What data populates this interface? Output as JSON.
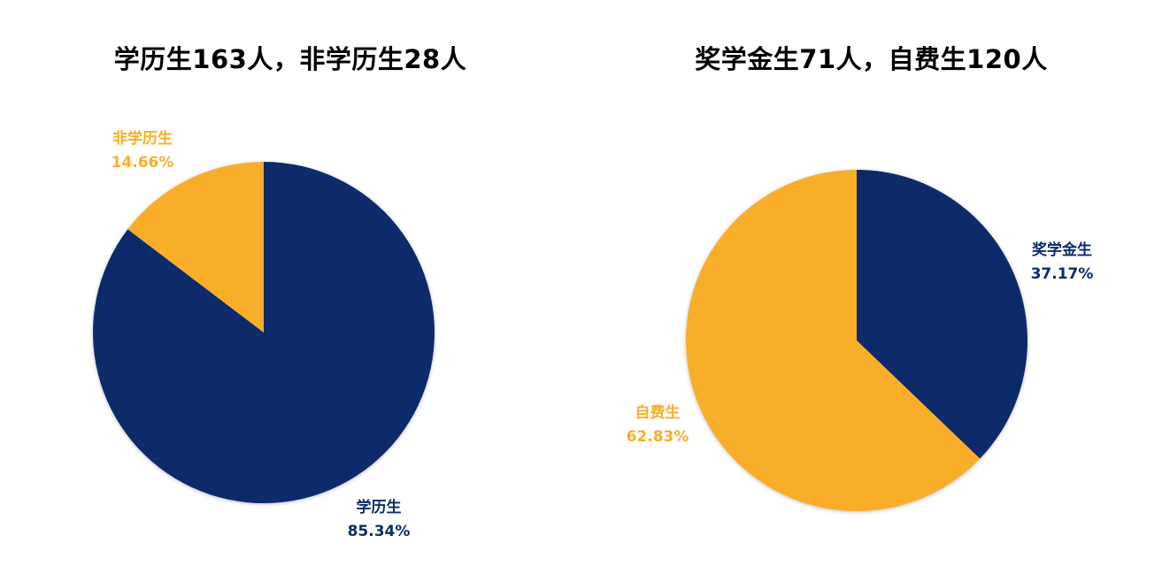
{
  "colors": {
    "navy": "#0A2B6B",
    "gold": "#F9AE29"
  },
  "chart_data": [
    {
      "type": "pie",
      "title": "学历生163人，非学历生28人",
      "slices": [
        {
          "label": "学历生",
          "value": 85.34,
          "value_text": "85.34%",
          "color": "#0A2B6B"
        },
        {
          "label": "非学历生",
          "value": 14.66,
          "value_text": "14.66%",
          "color": "#F9AE29"
        }
      ]
    },
    {
      "type": "pie",
      "title": "奖学金生71人，自费生120人",
      "slices": [
        {
          "label": "奖学金生",
          "value": 37.17,
          "value_text": "37.17%",
          "color": "#0A2B6B"
        },
        {
          "label": "自费生",
          "value": 62.83,
          "value_text": "62.83%",
          "color": "#F9AE29"
        }
      ]
    }
  ]
}
